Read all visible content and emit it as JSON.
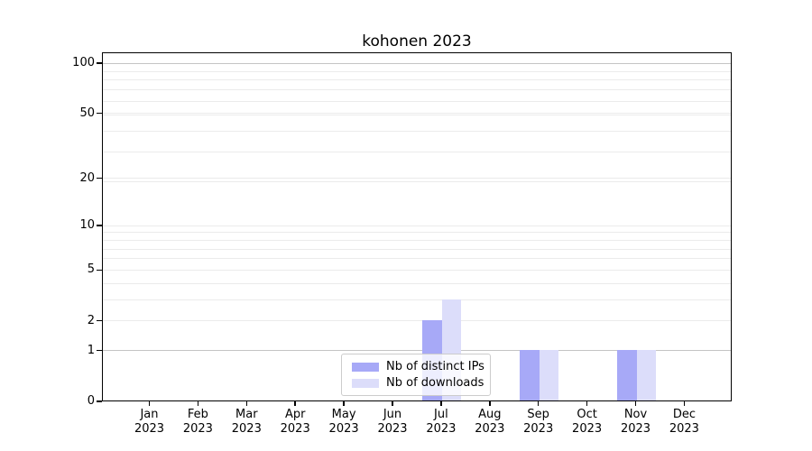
{
  "figure": {
    "title": "kohonen 2023"
  },
  "chart_data": {
    "type": "bar",
    "title": "kohonen 2023",
    "x": {
      "months": [
        "Jan",
        "Feb",
        "Mar",
        "Apr",
        "May",
        "Jun",
        "Jul",
        "Aug",
        "Sep",
        "Oct",
        "Nov",
        "Dec"
      ],
      "year": "2023"
    },
    "categories": [
      "Jan 2023",
      "Feb 2023",
      "Mar 2023",
      "Apr 2023",
      "May 2023",
      "Jun 2023",
      "Jul 2023",
      "Aug 2023",
      "Sep 2023",
      "Oct 2023",
      "Nov 2023",
      "Dec 2023"
    ],
    "series": [
      {
        "name": "Nb of distinct IPs",
        "color": "#a7a9f7",
        "values": [
          0,
          0,
          0,
          0,
          0,
          0,
          2,
          0,
          1,
          0,
          1,
          0
        ]
      },
      {
        "name": "Nb of downloads",
        "color": "#dcddfa",
        "values": [
          0,
          0,
          0,
          0,
          0,
          0,
          3,
          0,
          1,
          0,
          1,
          0
        ]
      }
    ],
    "y_axis": {
      "scale": "log10(1+y)",
      "major_ticks": [
        0,
        1,
        2,
        5,
        10,
        20,
        50,
        100
      ],
      "minor_gridlines": [
        3,
        4,
        6,
        7,
        8,
        9,
        19,
        29,
        39,
        49,
        59,
        69,
        79,
        89,
        99
      ],
      "emphasized_gridlines": [
        1,
        100
      ],
      "top_value": 117
    },
    "legend_position": "lower center",
    "grid": true,
    "colors": {
      "major_grid": "#c4c4c4",
      "minor_grid": "#ebebeb",
      "spine": "#000000",
      "text": "#000000",
      "background": "#ffffff"
    }
  }
}
